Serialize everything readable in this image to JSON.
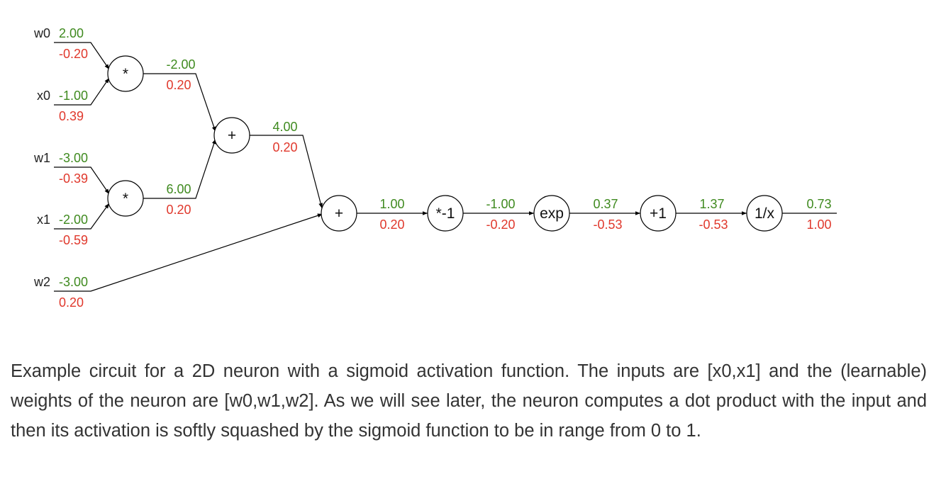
{
  "inputs": [
    {
      "name": "w0",
      "forward": "2.00",
      "grad": "-0.20"
    },
    {
      "name": "x0",
      "forward": "-1.00",
      "grad": "0.39"
    },
    {
      "name": "w1",
      "forward": "-3.00",
      "grad": "-0.39"
    },
    {
      "name": "x1",
      "forward": "-2.00",
      "grad": "-0.59"
    },
    {
      "name": "w2",
      "forward": "-3.00",
      "grad": "0.20"
    }
  ],
  "nodes": [
    {
      "id": "mul0",
      "op": "*",
      "forward": "-2.00",
      "grad": "0.20"
    },
    {
      "id": "mul1",
      "op": "*",
      "forward": "6.00",
      "grad": "0.20"
    },
    {
      "id": "add0",
      "op": "+",
      "forward": "4.00",
      "grad": "0.20"
    },
    {
      "id": "add1",
      "op": "+",
      "forward": "1.00",
      "grad": "0.20"
    },
    {
      "id": "neg",
      "op": "*-1",
      "forward": "-1.00",
      "grad": "-0.20"
    },
    {
      "id": "exp",
      "op": "exp",
      "forward": "0.37",
      "grad": "-0.53"
    },
    {
      "id": "plus1",
      "op": "+1",
      "forward": "1.37",
      "grad": "-0.53"
    },
    {
      "id": "recip",
      "op": "1/x",
      "forward": "0.73",
      "grad": "1.00"
    }
  ],
  "colors": {
    "forward": "#3f8a1f",
    "gradient": "#e0382c"
  },
  "caption": "Example circuit for a 2D neuron with a sigmoid activation function. The inputs are [x0,x1] and the (learnable) weights of the neuron are [w0,w1,w2]. As we will see later, the neuron computes a dot product with the input and then its activation is softly squashed by the sigmoid function to be in range from 0 to 1."
}
